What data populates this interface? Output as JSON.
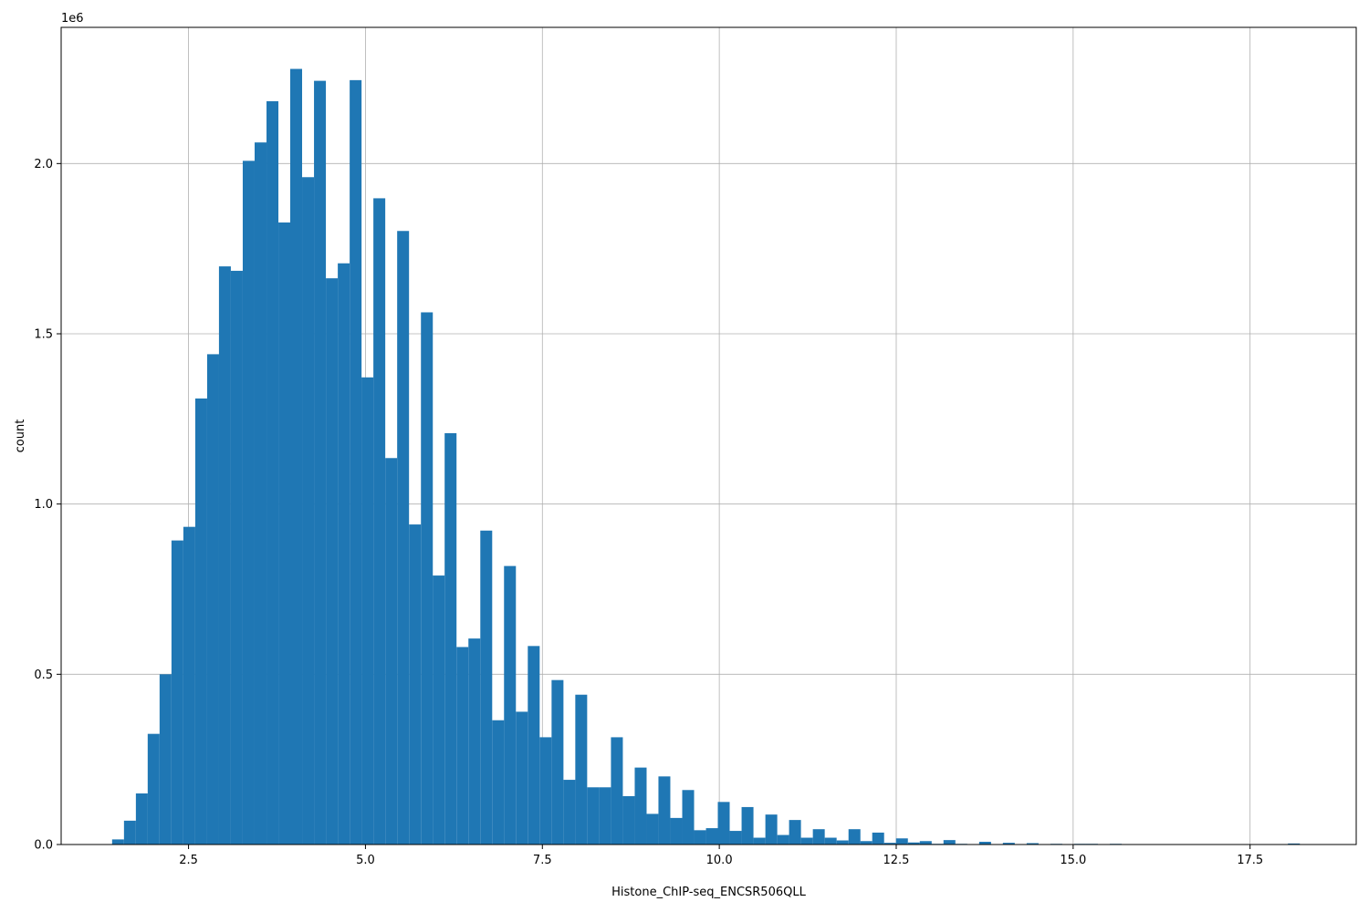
{
  "chart_data": {
    "type": "bar",
    "title": "",
    "xlabel": "Histone_ChIP-seq_ENCSR506QLL",
    "ylabel": "count",
    "y_multiplier_label": "1e6",
    "xlim": [
      0.7,
      19.0
    ],
    "ylim": [
      0,
      2.4
    ],
    "grid": true,
    "x_ticks": [
      2.5,
      5.0,
      7.5,
      10.0,
      12.5,
      15.0,
      17.5
    ],
    "x_tick_labels": [
      "2.5",
      "5.0",
      "7.5",
      "10.0",
      "12.5",
      "15.0",
      "17.5"
    ],
    "y_ticks": [
      0.0,
      0.5,
      1.0,
      1.5,
      2.0
    ],
    "y_tick_labels": [
      "0.0",
      "0.5",
      "1.0",
      "1.5",
      "2.0"
    ],
    "bar_color": "#1f77b4",
    "bin_width": 0.1678,
    "bin_lefts": [
      1.42,
      1.588,
      1.756,
      1.923,
      2.091,
      2.259,
      2.427,
      2.595,
      2.763,
      2.93,
      3.098,
      3.266,
      3.434,
      3.602,
      3.77,
      3.937,
      4.105,
      4.273,
      4.441,
      4.609,
      4.777,
      4.944,
      5.112,
      5.28,
      5.448,
      5.616,
      5.784,
      5.951,
      6.119,
      6.287,
      6.455,
      6.623,
      6.791,
      6.958,
      7.126,
      7.294,
      7.462,
      7.63,
      7.798,
      7.965,
      8.133,
      8.301,
      8.469,
      8.637,
      8.805,
      8.972,
      9.14,
      9.308,
      9.476,
      9.644,
      9.812,
      9.979,
      10.147,
      10.315,
      10.483,
      10.651,
      10.819,
      10.986,
      11.154,
      11.322,
      11.49,
      11.658,
      11.826,
      11.993,
      12.161,
      12.329,
      12.497,
      12.665,
      12.833,
      13.0,
      13.168,
      13.336,
      13.504,
      13.672,
      13.84,
      14.007,
      14.175,
      14.343,
      14.511,
      14.679,
      14.847,
      15.014,
      15.182,
      15.35,
      15.518,
      15.686,
      15.854,
      16.021,
      16.189,
      16.357,
      16.525,
      16.693,
      16.861,
      17.028,
      17.196,
      17.364,
      17.532,
      17.7,
      17.868,
      18.035
    ],
    "values": [
      0.015,
      0.07,
      0.15,
      0.325,
      0.5,
      0.893,
      0.933,
      1.31,
      1.44,
      1.698,
      1.685,
      2.008,
      2.062,
      2.183,
      1.827,
      2.278,
      1.96,
      2.243,
      1.663,
      1.707,
      2.245,
      1.372,
      1.898,
      1.135,
      1.802,
      0.94,
      1.563,
      0.79,
      1.208,
      0.58,
      0.605,
      0.922,
      0.365,
      0.818,
      0.39,
      0.583,
      0.315,
      0.483,
      0.19,
      0.44,
      0.168,
      0.168,
      0.315,
      0.142,
      0.226,
      0.09,
      0.2,
      0.078,
      0.16,
      0.042,
      0.048,
      0.125,
      0.04,
      0.11,
      0.02,
      0.088,
      0.028,
      0.072,
      0.02,
      0.045,
      0.02,
      0.012,
      0.045,
      0.01,
      0.035,
      0.005,
      0.018,
      0.006,
      0.01,
      0.002,
      0.013,
      0.002,
      0.001,
      0.008,
      0.001,
      0.005,
      0.001,
      0.004,
      0.001,
      0.002,
      0.001,
      0.002,
      0.002,
      0.0,
      0.002,
      0.0,
      0.0,
      0.0,
      0.0,
      0.0,
      0.0,
      0.0,
      0.0,
      0.0,
      0.0,
      0.0,
      0.0,
      0.0,
      0.0,
      0.003
    ]
  }
}
